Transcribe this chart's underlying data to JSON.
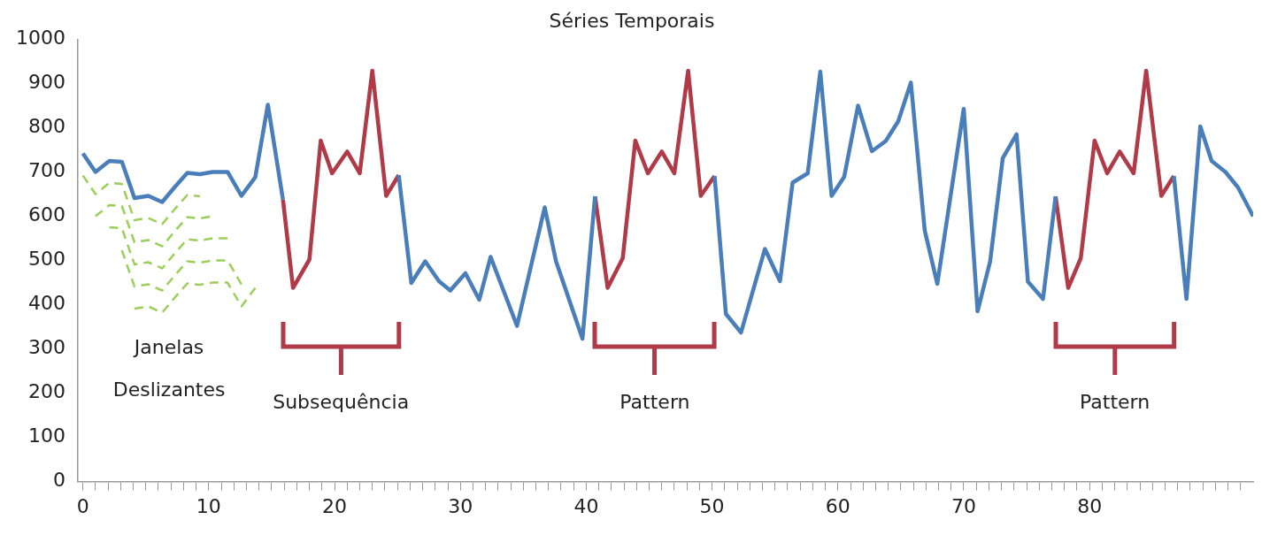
{
  "chart_data": {
    "type": "line",
    "title": "Séries Temporais",
    "marker": "none",
    "xlim": [
      -0.4,
      93
    ],
    "ylim": [
      0,
      1000
    ],
    "yticks": [
      0,
      100,
      200,
      300,
      400,
      500,
      600,
      700,
      800,
      900,
      1000
    ],
    "xticks": [
      0,
      {
        "value": 1,
        "label": null
      },
      {
        "value": 2,
        "label": null
      },
      {
        "value": 3,
        "label": null
      },
      {
        "value": 4,
        "label": null
      },
      {
        "value": 5,
        "label": null
      },
      {
        "value": 6,
        "label": null
      },
      {
        "value": 7,
        "label": null
      },
      {
        "value": 8,
        "label": null
      },
      {
        "value": 9,
        "label": null
      },
      10,
      {
        "value": 11,
        "label": null
      },
      {
        "value": 12,
        "label": null
      },
      {
        "value": 13,
        "label": null
      },
      {
        "value": 14,
        "label": null
      },
      {
        "value": 15,
        "label": null
      },
      {
        "value": 16,
        "label": null
      },
      {
        "value": 17,
        "label": null
      },
      {
        "value": 18,
        "label": null
      },
      {
        "value": 19,
        "label": null
      },
      20,
      {
        "value": 21,
        "label": null
      },
      {
        "value": 22,
        "label": null
      },
      {
        "value": 23,
        "label": null
      },
      {
        "value": 24,
        "label": null
      },
      {
        "value": 25,
        "label": null
      },
      {
        "value": 26,
        "label": null
      },
      {
        "value": 27,
        "label": null
      },
      {
        "value": 28,
        "label": null
      },
      {
        "value": 29,
        "label": null
      },
      30,
      {
        "value": 31,
        "label": null
      },
      {
        "value": 32,
        "label": null
      },
      {
        "value": 33,
        "label": null
      },
      {
        "value": 34,
        "label": null
      },
      {
        "value": 35,
        "label": null
      },
      {
        "value": 36,
        "label": null
      },
      {
        "value": 37,
        "label": null
      },
      {
        "value": 38,
        "label": null
      },
      {
        "value": 39,
        "label": null
      },
      40,
      {
        "value": 41,
        "label": null
      },
      {
        "value": 42,
        "label": null
      },
      {
        "value": 43,
        "label": null
      },
      {
        "value": 44,
        "label": null
      },
      {
        "value": 45,
        "label": null
      },
      {
        "value": 46,
        "label": null
      },
      {
        "value": 47,
        "label": null
      },
      {
        "value": 48,
        "label": null
      },
      {
        "value": 49,
        "label": null
      },
      50,
      {
        "value": 51,
        "label": null
      },
      {
        "value": 52,
        "label": null
      },
      {
        "value": 53,
        "label": null
      },
      {
        "value": 54,
        "label": null
      },
      {
        "value": 55,
        "label": null
      },
      {
        "value": 56,
        "label": null
      },
      {
        "value": 57,
        "label": null
      },
      {
        "value": 58,
        "label": null
      },
      {
        "value": 59,
        "label": null
      },
      60,
      {
        "value": 61,
        "label": null
      },
      {
        "value": 62,
        "label": null
      },
      {
        "value": 63,
        "label": null
      },
      {
        "value": 64,
        "label": null
      },
      {
        "value": 65,
        "label": null
      },
      {
        "value": 66,
        "label": null
      },
      {
        "value": 67,
        "label": null
      },
      {
        "value": 68,
        "label": null
      },
      {
        "value": 69,
        "label": null
      },
      70,
      {
        "value": 71,
        "label": null
      },
      {
        "value": 72,
        "label": null
      },
      {
        "value": 73,
        "label": null
      },
      {
        "value": 74,
        "label": null
      },
      {
        "value": 75,
        "label": null
      },
      {
        "value": 76,
        "label": null
      },
      {
        "value": 77,
        "label": null
      },
      {
        "value": 78,
        "label": null
      },
      {
        "value": 79,
        "label": null
      },
      80,
      {
        "value": 81,
        "label": null
      },
      {
        "value": 82,
        "label": null
      },
      {
        "value": 83,
        "label": null
      },
      {
        "value": 84,
        "label": null
      },
      {
        "value": 85,
        "label": null
      },
      {
        "value": 86,
        "label": null
      },
      {
        "value": 87,
        "label": null
      },
      {
        "value": 88,
        "label": null
      },
      {
        "value": 89,
        "label": null
      },
      {
        "value": 90,
        "label": null
      },
      {
        "value": 91,
        "label": null
      },
      {
        "value": 92,
        "label": null
      }
    ],
    "series": [
      {
        "color": "#4a7ebb",
        "line_style": "solid",
        "x": [
          0,
          1.0,
          2.1,
          3.1,
          4.1,
          5.2,
          6.3,
          7.3,
          8.3,
          9.3,
          10.3,
          11.5,
          12.6,
          13.7,
          14.7,
          15.9,
          20,
          25.1,
          26.1,
          27.2,
          28.3,
          29.2,
          30.4,
          31.5,
          32.4,
          34.5,
          36.7,
          37.6,
          39.7,
          40.7,
          45,
          50.2,
          51.1,
          52.3,
          54.2,
          55.4,
          56.4,
          57.6,
          58.6,
          59.5,
          60.5,
          61.6,
          62.7,
          63.8,
          64.8,
          65.8,
          66.9,
          67.9,
          70.0,
          71.1,
          72.1,
          73.1,
          74.2,
          75.1,
          76.3,
          77.3,
          82,
          86.7,
          87.7,
          88.8,
          89.7,
          90.8,
          91.8,
          93.0
        ],
        "values": [
          742,
          700,
          725,
          723,
          641,
          646,
          632,
          666,
          698,
          695,
          700,
          700,
          646,
          688,
          852,
          637,
          null,
          693,
          449,
          498,
          453,
          432,
          471,
          411,
          508,
          352,
          620,
          498,
          323,
          645,
          null,
          691,
          379,
          337,
          526,
          453,
          676,
          697,
          927,
          646,
          689,
          850,
          747,
          770,
          815,
          902,
          568,
          447,
          843,
          385,
          498,
          731,
          785,
          452,
          413,
          645,
          null,
          691,
          413,
          803,
          725,
          700,
          665,
          600
        ]
      },
      {
        "color": "#b03a48",
        "line_style": "solid",
        "x": [
          15.9,
          16.7,
          18.0,
          18.9,
          19.8,
          21.0,
          22.0,
          23.0,
          24.1,
          25.1,
          33,
          40.7,
          41.7,
          42.9,
          43.9,
          44.9,
          46.0,
          47.0,
          48.1,
          49.1,
          50.2,
          60,
          77.3,
          78.3,
          79.3,
          80.4,
          81.4,
          82.4,
          83.5,
          84.5,
          85.7,
          86.7
        ],
        "values": [
          637,
          438,
          502,
          771,
          697,
          746,
          697,
          929,
          646,
          693,
          null,
          645,
          438,
          505,
          771,
          697,
          746,
          697,
          929,
          646,
          691,
          null,
          645,
          438,
          505,
          771,
          697,
          746,
          697,
          929,
          646,
          691
        ]
      },
      {
        "color": "#9ccf5a",
        "line_style": "dashed",
        "x": [
          0,
          1.0,
          2.1,
          3.1,
          4.1,
          5.2,
          6.3,
          7.3,
          8.3,
          9.3
        ],
        "values": [
          692,
          650,
          675,
          673,
          591,
          596,
          582,
          616,
          648,
          645
        ]
      },
      {
        "color": "#9ccf5a",
        "line_style": "dashed",
        "x": [
          1.0,
          2.1,
          3.1,
          4.1,
          5.2,
          6.3,
          7.3,
          8.3,
          9.3,
          10.3
        ],
        "values": [
          600,
          625,
          623,
          541,
          546,
          532,
          566,
          598,
          595,
          600
        ]
      },
      {
        "color": "#9ccf5a",
        "line_style": "dashed",
        "x": [
          2.1,
          3.1,
          4.1,
          5.2,
          6.3,
          7.3,
          8.3,
          9.3,
          10.3,
          11.5
        ],
        "values": [
          575,
          573,
          491,
          496,
          482,
          516,
          548,
          545,
          550,
          550
        ]
      },
      {
        "color": "#9ccf5a",
        "line_style": "dashed",
        "x": [
          3.1,
          4.1,
          5.2,
          6.3,
          7.3,
          8.3,
          9.3,
          10.3,
          11.5,
          12.6
        ],
        "values": [
          523,
          441,
          446,
          432,
          466,
          498,
          495,
          500,
          500,
          446
        ]
      },
      {
        "color": "#9ccf5a",
        "line_style": "dashed",
        "x": [
          4.1,
          5.2,
          6.3,
          7.3,
          8.3,
          9.3,
          10.3,
          11.5,
          12.6,
          13.7
        ],
        "values": [
          391,
          396,
          382,
          416,
          448,
          445,
          450,
          450,
          396,
          438
        ]
      }
    ],
    "annotations": [
      "Janelas\nDeslizantes",
      "Subsequência",
      "Pattern",
      "Pattern"
    ]
  }
}
